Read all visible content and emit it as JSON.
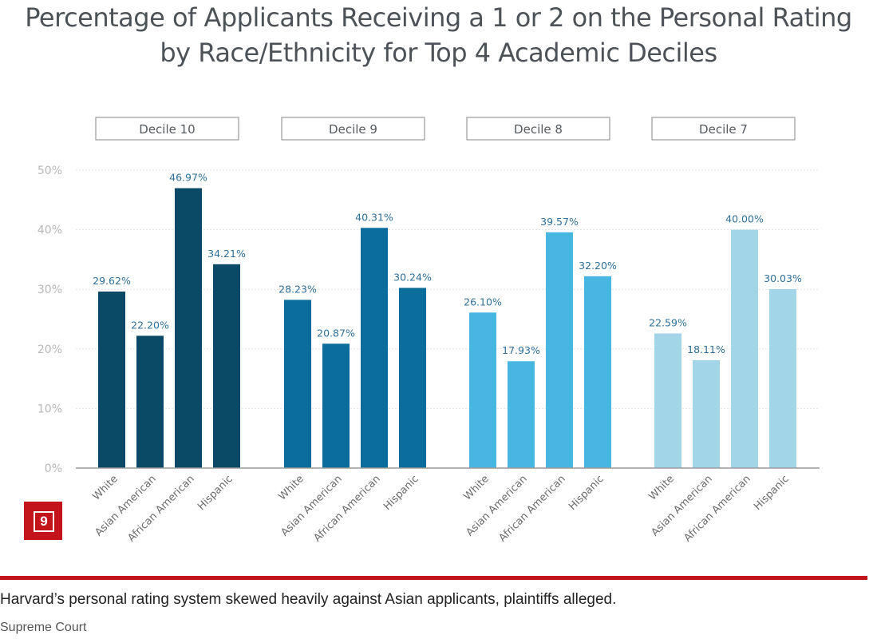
{
  "chart_data": {
    "type": "bar",
    "title_lines": [
      "Percentage of Applicants Receiving a 1 or 2 on the Personal Rating",
      "by Race/Ethnicity for Top 4 Academic Deciles"
    ],
    "categories": [
      "White",
      "Asian American",
      "African American",
      "Hispanic"
    ],
    "panels": [
      {
        "name": "Decile 10",
        "color": "#0b4a66",
        "values": [
          29.62,
          22.2,
          46.97,
          34.21
        ],
        "value_labels": [
          "29.62%",
          "22.20%",
          "46.97%",
          "34.21%"
        ]
      },
      {
        "name": "Decile 9",
        "color": "#0b6d9c",
        "values": [
          28.23,
          20.87,
          40.31,
          30.24
        ],
        "value_labels": [
          "28.23%",
          "20.87%",
          "40.31%",
          "30.24%"
        ]
      },
      {
        "name": "Decile 8",
        "color": "#47b7e2",
        "values": [
          26.1,
          17.93,
          39.57,
          32.2
        ],
        "value_labels": [
          "26.10%",
          "17.93%",
          "39.57%",
          "32.20%"
        ]
      },
      {
        "name": "Decile 7",
        "color": "#a3d5e9",
        "values": [
          22.59,
          18.11,
          40.0,
          30.03
        ],
        "value_labels": [
          "22.59%",
          "18.11%",
          "40.00%",
          "30.03%"
        ]
      }
    ],
    "ylim": [
      0,
      50
    ],
    "yticks": [
      "0%",
      "10%",
      "20%",
      "30%",
      "40%",
      "50%"
    ],
    "grid": true
  },
  "badge": {
    "label": "9"
  },
  "caption": "Harvard’s personal rating system skewed heavily against Asian applicants, plaintiffs alleged.",
  "credit": "Supreme Court",
  "colors": {
    "accent": "#c4141b",
    "label_text": "#2f6f99"
  }
}
